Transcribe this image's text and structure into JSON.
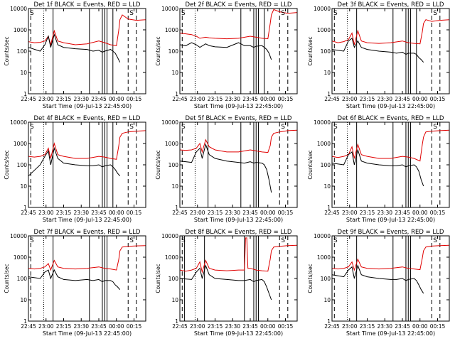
{
  "chart_data": {
    "shared": {
      "type": "line",
      "ylabel": "Counts/sec",
      "xlabel": "Start Time (09-Jul-13 22:45:00)",
      "x_tick_labels": [
        "22:45",
        "23:00",
        "23:15",
        "23:30",
        "23:45",
        "00:00",
        "00:15"
      ],
      "x_tick_minutes": [
        0,
        15,
        30,
        45,
        60,
        75,
        90
      ],
      "xlim_minutes": [
        0,
        100
      ],
      "y_scale": "log",
      "ylim": [
        1,
        10000
      ],
      "y_tick_values": [
        1,
        10,
        100,
        1000,
        10000
      ],
      "y_tick_labels": [
        "1",
        "10",
        "100",
        "1000",
        "10000"
      ],
      "series_colors": {
        "events": "#000000",
        "lld": "#e00000"
      },
      "marker_text": "S",
      "dashed_vlines_minutes": [
        2,
        85,
        92
      ],
      "dotted_vline_minutes": 13
    },
    "panels": [
      {
        "title": "Det 1f BLACK = Events, RED = LLD",
        "solid_vlines_minutes": [
          21,
          52,
          63,
          65,
          67,
          72
        ],
        "black": {
          "t": [
            0,
            10,
            14,
            17,
            19,
            22,
            25,
            30,
            40,
            50,
            55,
            60,
            63,
            65,
            70,
            72,
            74,
            76,
            78
          ],
          "v": [
            150,
            100,
            200,
            500,
            150,
            600,
            200,
            150,
            130,
            120,
            100,
            110,
            90,
            100,
            120,
            100,
            80,
            50,
            30
          ]
        },
        "red": {
          "t": [
            0,
            5,
            10,
            14,
            17,
            19,
            22,
            25,
            30,
            40,
            50,
            60,
            65,
            70,
            75,
            77,
            78,
            80,
            85,
            92,
            100
          ],
          "v": [
            280,
            250,
            260,
            300,
            500,
            200,
            900,
            300,
            250,
            200,
            220,
            300,
            250,
            200,
            180,
            1000,
            3000,
            5000,
            3200,
            2800,
            3000
          ]
        }
      },
      {
        "title": "Det 2f BLACK = Events, RED = LLD",
        "solid_vlines_minutes": [
          52,
          63,
          65,
          67,
          72
        ],
        "black": {
          "t": [
            0,
            5,
            10,
            14,
            17,
            22,
            25,
            30,
            40,
            50,
            55,
            60,
            63,
            65,
            70,
            72,
            74,
            76,
            78
          ],
          "v": [
            200,
            180,
            250,
            200,
            150,
            220,
            180,
            160,
            150,
            250,
            180,
            180,
            150,
            170,
            180,
            150,
            120,
            80,
            40
          ]
        },
        "red": {
          "t": [
            0,
            5,
            10,
            14,
            17,
            22,
            25,
            30,
            40,
            50,
            60,
            65,
            70,
            75,
            77,
            78,
            80,
            85,
            92,
            100
          ],
          "v": [
            700,
            650,
            600,
            500,
            400,
            450,
            420,
            400,
            380,
            400,
            500,
            450,
            400,
            380,
            2000,
            5000,
            9000,
            7000,
            6000,
            6500
          ]
        }
      },
      {
        "title": "Det 3f BLACK = Events, RED = LLD",
        "solid_vlines_minutes": [
          21,
          52,
          63,
          65,
          67,
          72
        ],
        "black": {
          "t": [
            0,
            10,
            14,
            17,
            19,
            22,
            25,
            30,
            40,
            50,
            55,
            60,
            63,
            65,
            70,
            72,
            74,
            76,
            78
          ],
          "v": [
            120,
            100,
            300,
            400,
            150,
            300,
            150,
            120,
            100,
            90,
            80,
            90,
            70,
            80,
            80,
            70,
            50,
            40,
            30
          ]
        },
        "red": {
          "t": [
            0,
            5,
            10,
            14,
            17,
            19,
            22,
            25,
            30,
            40,
            50,
            60,
            65,
            70,
            75,
            77,
            78,
            80,
            85,
            92,
            100
          ],
          "v": [
            300,
            250,
            280,
            350,
            700,
            200,
            900,
            300,
            250,
            230,
            250,
            300,
            250,
            230,
            220,
            800,
            2000,
            3000,
            2500,
            2800,
            3000
          ]
        }
      },
      {
        "title": "Det 4f BLACK = Events, RED = LLD",
        "solid_vlines_minutes": [
          21,
          52,
          63,
          65,
          67,
          72
        ],
        "black": {
          "t": [
            0,
            10,
            14,
            17,
            19,
            22,
            25,
            30,
            40,
            50,
            55,
            60,
            63,
            65,
            70,
            72,
            74,
            76,
            78
          ],
          "v": [
            30,
            100,
            250,
            450,
            100,
            600,
            200,
            120,
            100,
            90,
            90,
            100,
            80,
            90,
            100,
            80,
            60,
            40,
            30
          ]
        },
        "red": {
          "t": [
            0,
            5,
            10,
            14,
            17,
            19,
            22,
            25,
            30,
            40,
            50,
            60,
            65,
            70,
            75,
            77,
            78,
            80,
            85,
            92,
            100
          ],
          "v": [
            250,
            230,
            250,
            300,
            600,
            200,
            1000,
            300,
            250,
            200,
            200,
            250,
            230,
            200,
            180,
            800,
            2000,
            3000,
            3500,
            3800,
            4000
          ]
        }
      },
      {
        "title": "Det 5f BLACK = Events, RED = LLD",
        "solid_vlines_minutes": [
          24,
          52,
          63,
          65,
          67
        ],
        "black": {
          "t": [
            0,
            10,
            14,
            17,
            19,
            22,
            25,
            30,
            40,
            50,
            55,
            60,
            63,
            65,
            70,
            72,
            74,
            76,
            78
          ],
          "v": [
            150,
            130,
            400,
            600,
            200,
            900,
            300,
            200,
            150,
            130,
            120,
            140,
            120,
            130,
            120,
            100,
            60,
            20,
            5
          ]
        },
        "red": {
          "t": [
            0,
            5,
            10,
            14,
            17,
            19,
            22,
            25,
            30,
            40,
            50,
            60,
            65,
            70,
            75,
            77,
            78,
            80,
            85,
            92,
            100
          ],
          "v": [
            500,
            480,
            500,
            600,
            1000,
            400,
            1500,
            700,
            500,
            400,
            400,
            500,
            450,
            400,
            380,
            800,
            2000,
            3000,
            3500,
            4000,
            4200
          ]
        }
      },
      {
        "title": "Det 6f BLACK = Events, RED = LLD",
        "solid_vlines_minutes": [
          21,
          52,
          63,
          65,
          67
        ],
        "black": {
          "t": [
            0,
            10,
            14,
            17,
            19,
            22,
            25,
            30,
            40,
            50,
            55,
            60,
            63,
            65,
            70,
            72,
            74,
            76,
            78
          ],
          "v": [
            120,
            100,
            300,
            400,
            100,
            500,
            150,
            120,
            100,
            90,
            90,
            100,
            80,
            90,
            100,
            80,
            50,
            20,
            10
          ]
        },
        "red": {
          "t": [
            0,
            5,
            10,
            14,
            17,
            19,
            22,
            25,
            30,
            40,
            50,
            60,
            65,
            70,
            75,
            77,
            78,
            80,
            85,
            92,
            100
          ],
          "v": [
            250,
            220,
            250,
            300,
            700,
            200,
            900,
            300,
            250,
            200,
            200,
            250,
            230,
            200,
            150,
            900,
            2000,
            3500,
            3800,
            4000,
            4200
          ]
        }
      },
      {
        "title": "Det 7f BLACK = Events, RED = LLD",
        "solid_vlines_minutes": [
          21,
          52,
          63,
          65,
          67
        ],
        "black": {
          "t": [
            0,
            10,
            14,
            17,
            19,
            22,
            25,
            30,
            40,
            50,
            55,
            60,
            63,
            65,
            70,
            72,
            74,
            76,
            78
          ],
          "v": [
            120,
            100,
            200,
            250,
            100,
            250,
            120,
            90,
            80,
            90,
            80,
            90,
            70,
            80,
            80,
            70,
            50,
            40,
            30
          ]
        },
        "red": {
          "t": [
            0,
            5,
            10,
            14,
            17,
            19,
            22,
            25,
            30,
            40,
            50,
            60,
            65,
            70,
            75,
            77,
            78,
            80,
            85,
            92,
            100
          ],
          "v": [
            300,
            280,
            300,
            350,
            500,
            250,
            700,
            350,
            300,
            280,
            300,
            350,
            300,
            280,
            250,
            800,
            2000,
            3000,
            3200,
            3400,
            3500
          ]
        }
      },
      {
        "title": "Det 8f BLACK = Events, RED = LLD",
        "solid_vlines_minutes": [
          4,
          21,
          55,
          63,
          65,
          67
        ],
        "black": {
          "t": [
            0,
            10,
            14,
            17,
            19,
            22,
            25,
            30,
            40,
            50,
            55,
            60,
            63,
            65,
            70,
            72,
            74,
            76,
            78
          ],
          "v": [
            100,
            90,
            200,
            300,
            100,
            400,
            150,
            100,
            90,
            80,
            80,
            90,
            70,
            80,
            90,
            70,
            40,
            20,
            10
          ]
        },
        "red": {
          "t": [
            0,
            5,
            10,
            14,
            17,
            19,
            22,
            25,
            30,
            40,
            50,
            55,
            56,
            57,
            58,
            60,
            65,
            70,
            75,
            77,
            78,
            80,
            85,
            92,
            100
          ],
          "v": [
            250,
            220,
            250,
            300,
            600,
            200,
            700,
            300,
            250,
            230,
            250,
            250,
            8000,
            8000,
            300,
            300,
            250,
            230,
            220,
            800,
            2000,
            3000,
            3200,
            3500,
            3600
          ]
        }
      },
      {
        "title": "Det 9f BLACK = Events, RED = LLD",
        "solid_vlines_minutes": [
          21,
          52,
          63,
          65,
          67
        ],
        "black": {
          "t": [
            0,
            10,
            14,
            17,
            19,
            22,
            25,
            30,
            40,
            50,
            55,
            60,
            63,
            65,
            70,
            72,
            74,
            76,
            78
          ],
          "v": [
            150,
            120,
            250,
            350,
            100,
            400,
            150,
            120,
            100,
            90,
            90,
            100,
            80,
            90,
            100,
            80,
            50,
            30,
            20
          ]
        },
        "red": {
          "t": [
            0,
            5,
            10,
            14,
            17,
            19,
            22,
            25,
            30,
            40,
            50,
            60,
            65,
            70,
            75,
            77,
            78,
            80,
            85,
            92,
            100
          ],
          "v": [
            300,
            280,
            300,
            350,
            600,
            250,
            800,
            350,
            300,
            280,
            300,
            350,
            300,
            280,
            260,
            900,
            2000,
            3000,
            3300,
            3500,
            3600
          ]
        }
      }
    ]
  }
}
